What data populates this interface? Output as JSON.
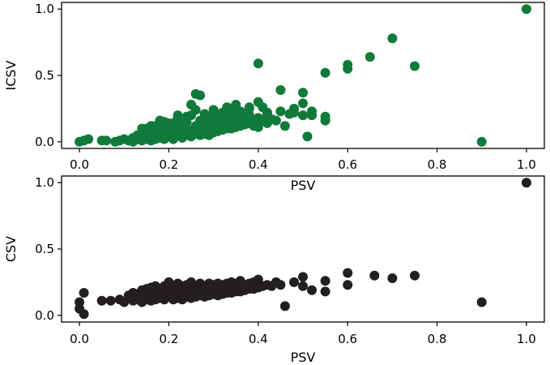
{
  "chart_data": [
    {
      "type": "scatter",
      "title": "",
      "xlabel": "PSV",
      "ylabel": "ICSV",
      "xlim": [
        -0.04,
        1.04
      ],
      "ylim": [
        -0.05,
        1.05
      ],
      "xticks": [
        0.0,
        0.2,
        0.4,
        0.6,
        0.8,
        1.0
      ],
      "xtick_labels": [
        "0.0",
        "0.2",
        "0.4",
        "0.6",
        "0.8",
        "1.0"
      ],
      "yticks": [
        0.0,
        0.5,
        1.0
      ],
      "ytick_labels": [
        "0.0",
        "0.5",
        "1.0"
      ],
      "grid": false,
      "color": "#107a3a",
      "series": [
        {
          "x": [
            0.0,
            0.01,
            0.02,
            0.05,
            0.06,
            0.08,
            0.09,
            0.1,
            0.11,
            0.12,
            0.12,
            0.13,
            0.13,
            0.14,
            0.14,
            0.15,
            0.15,
            0.15,
            0.16,
            0.16,
            0.16,
            0.17,
            0.17,
            0.17,
            0.18,
            0.18,
            0.18,
            0.19,
            0.19,
            0.19,
            0.2,
            0.2,
            0.2,
            0.21,
            0.21,
            0.21,
            0.22,
            0.22,
            0.22,
            0.23,
            0.23,
            0.23,
            0.24,
            0.24,
            0.24,
            0.25,
            0.25,
            0.25,
            0.26,
            0.26,
            0.26,
            0.27,
            0.27,
            0.27,
            0.28,
            0.28,
            0.28,
            0.29,
            0.29,
            0.29,
            0.3,
            0.3,
            0.3,
            0.31,
            0.31,
            0.31,
            0.32,
            0.32,
            0.32,
            0.33,
            0.33,
            0.33,
            0.34,
            0.34,
            0.34,
            0.35,
            0.35,
            0.35,
            0.36,
            0.36,
            0.36,
            0.37,
            0.37,
            0.37,
            0.38,
            0.38,
            0.38,
            0.39,
            0.39,
            0.4,
            0.4,
            0.41,
            0.41,
            0.42,
            0.42,
            0.43,
            0.44,
            0.45,
            0.45,
            0.46,
            0.47,
            0.48,
            0.5,
            0.5,
            0.5,
            0.51,
            0.52,
            0.55,
            0.55,
            0.55,
            0.6,
            0.6,
            0.65,
            0.7,
            0.75,
            0.9,
            1.0,
            0.26,
            0.27,
            0.2,
            0.22,
            0.25,
            0.28,
            0.3,
            0.33,
            0.35,
            0.38,
            0.4,
            0.18,
            0.24,
            0.32,
            0.36,
            0.42,
            0.48,
            0.52,
            0.4,
            0.14,
            0.16,
            0.23,
            0.29,
            0.31,
            0.34
          ],
          "y": [
            0.0,
            0.01,
            0.02,
            0.01,
            0.01,
            0.0,
            0.01,
            0.02,
            0.01,
            0.03,
            0.0,
            0.02,
            0.05,
            0.03,
            0.01,
            0.06,
            0.02,
            0.1,
            0.04,
            0.01,
            0.08,
            0.05,
            0.02,
            0.12,
            0.06,
            0.03,
            0.1,
            0.07,
            0.02,
            0.15,
            0.08,
            0.04,
            0.12,
            0.06,
            0.02,
            0.14,
            0.09,
            0.05,
            0.2,
            0.07,
            0.03,
            0.12,
            0.1,
            0.05,
            0.15,
            0.08,
            0.04,
            0.2,
            0.12,
            0.06,
            0.24,
            0.09,
            0.05,
            0.16,
            0.11,
            0.06,
            0.18,
            0.1,
            0.05,
            0.14,
            0.13,
            0.07,
            0.2,
            0.12,
            0.08,
            0.17,
            0.14,
            0.09,
            0.22,
            0.13,
            0.1,
            0.19,
            0.15,
            0.1,
            0.25,
            0.16,
            0.11,
            0.2,
            0.17,
            0.12,
            0.22,
            0.18,
            0.13,
            0.15,
            0.2,
            0.14,
            0.25,
            0.15,
            0.12,
            0.18,
            0.59,
            0.26,
            0.16,
            0.14,
            0.2,
            0.17,
            0.16,
            0.39,
            0.23,
            0.12,
            0.21,
            0.22,
            0.37,
            0.29,
            0.2,
            0.04,
            0.2,
            0.19,
            0.16,
            0.52,
            0.58,
            0.55,
            0.64,
            0.78,
            0.57,
            0.0,
            1.0,
            0.36,
            0.35,
            0.14,
            0.18,
            0.28,
            0.21,
            0.24,
            0.26,
            0.28,
            0.26,
            0.3,
            0.16,
            0.19,
            0.2,
            0.23,
            0.22,
            0.25,
            0.23,
            0.11,
            0.1,
            0.12,
            0.14,
            0.16,
            0.18,
            0.18
          ]
        }
      ]
    },
    {
      "type": "scatter",
      "title": "",
      "xlabel": "PSV",
      "ylabel": "CSV",
      "xlim": [
        -0.04,
        1.04
      ],
      "ylim": [
        -0.05,
        1.05
      ],
      "xticks": [
        0.0,
        0.2,
        0.4,
        0.6,
        0.8,
        1.0
      ],
      "xtick_labels": [
        "0.0",
        "0.2",
        "0.4",
        "0.6",
        "0.8",
        "1.0"
      ],
      "yticks": [
        0.0,
        0.5,
        1.0
      ],
      "ytick_labels": [
        "0.0",
        "0.5",
        "1.0"
      ],
      "grid": false,
      "color": "#231f20",
      "series": [
        {
          "x": [
            0.0,
            0.0,
            0.01,
            0.01,
            0.05,
            0.07,
            0.09,
            0.1,
            0.11,
            0.12,
            0.12,
            0.13,
            0.13,
            0.14,
            0.14,
            0.15,
            0.15,
            0.15,
            0.16,
            0.16,
            0.16,
            0.17,
            0.17,
            0.17,
            0.18,
            0.18,
            0.18,
            0.19,
            0.19,
            0.19,
            0.2,
            0.2,
            0.2,
            0.21,
            0.21,
            0.21,
            0.22,
            0.22,
            0.22,
            0.23,
            0.23,
            0.23,
            0.24,
            0.24,
            0.24,
            0.25,
            0.25,
            0.25,
            0.26,
            0.26,
            0.26,
            0.27,
            0.27,
            0.27,
            0.28,
            0.28,
            0.28,
            0.29,
            0.29,
            0.29,
            0.3,
            0.3,
            0.3,
            0.31,
            0.31,
            0.31,
            0.32,
            0.32,
            0.32,
            0.33,
            0.33,
            0.33,
            0.34,
            0.34,
            0.34,
            0.35,
            0.35,
            0.35,
            0.36,
            0.36,
            0.36,
            0.37,
            0.37,
            0.38,
            0.38,
            0.39,
            0.39,
            0.4,
            0.4,
            0.41,
            0.42,
            0.43,
            0.44,
            0.45,
            0.46,
            0.48,
            0.5,
            0.5,
            0.52,
            0.55,
            0.55,
            0.6,
            0.6,
            0.66,
            0.7,
            0.75,
            0.9,
            1.0
          ],
          "y": [
            0.1,
            0.05,
            0.01,
            0.17,
            0.11,
            0.11,
            0.12,
            0.1,
            0.15,
            0.11,
            0.17,
            0.12,
            0.16,
            0.1,
            0.19,
            0.12,
            0.15,
            0.2,
            0.11,
            0.16,
            0.21,
            0.12,
            0.17,
            0.22,
            0.13,
            0.18,
            0.2,
            0.12,
            0.16,
            0.22,
            0.14,
            0.18,
            0.25,
            0.12,
            0.17,
            0.21,
            0.13,
            0.19,
            0.24,
            0.12,
            0.16,
            0.22,
            0.14,
            0.18,
            0.23,
            0.13,
            0.19,
            0.25,
            0.14,
            0.18,
            0.22,
            0.15,
            0.19,
            0.24,
            0.14,
            0.18,
            0.22,
            0.15,
            0.2,
            0.24,
            0.16,
            0.19,
            0.23,
            0.15,
            0.2,
            0.24,
            0.16,
            0.21,
            0.23,
            0.17,
            0.2,
            0.24,
            0.17,
            0.22,
            0.25,
            0.18,
            0.21,
            0.24,
            0.18,
            0.22,
            0.26,
            0.19,
            0.23,
            0.2,
            0.24,
            0.2,
            0.25,
            0.21,
            0.27,
            0.22,
            0.23,
            0.22,
            0.25,
            0.23,
            0.07,
            0.25,
            0.22,
            0.29,
            0.19,
            0.18,
            0.26,
            0.23,
            0.32,
            0.3,
            0.28,
            0.3,
            0.1,
            1.0
          ]
        }
      ]
    }
  ]
}
